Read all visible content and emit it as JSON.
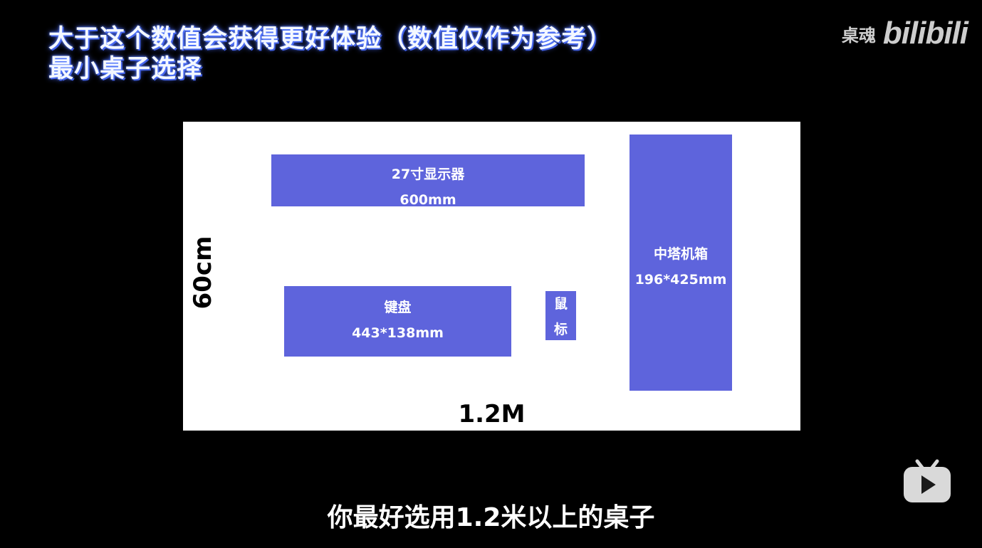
{
  "title": {
    "line1": "大于这个数值会获得更好体验（数值仅作为参考）",
    "line2": "最小桌子选择"
  },
  "watermark": {
    "channel": "桌魂",
    "brand": "bilibili"
  },
  "desk": {
    "width_label": "1.2M",
    "depth_label": "60cm",
    "items": {
      "monitor": {
        "name": "27寸显示器",
        "size": "600mm"
      },
      "keyboard": {
        "name": "键盘",
        "size": "443*138mm"
      },
      "mouse": {
        "line1": "鼠",
        "line2": "标"
      },
      "tower": {
        "name": "中塔机箱",
        "size": "196*425mm"
      }
    }
  },
  "subtitle": "你最好选用1.2米以上的桌子",
  "colors": {
    "item_fill": "#5e64dc",
    "desk_background": "#ffffff",
    "title_glow": "#4f6cff"
  },
  "icons": {
    "player": "bilibili-tv-icon"
  }
}
